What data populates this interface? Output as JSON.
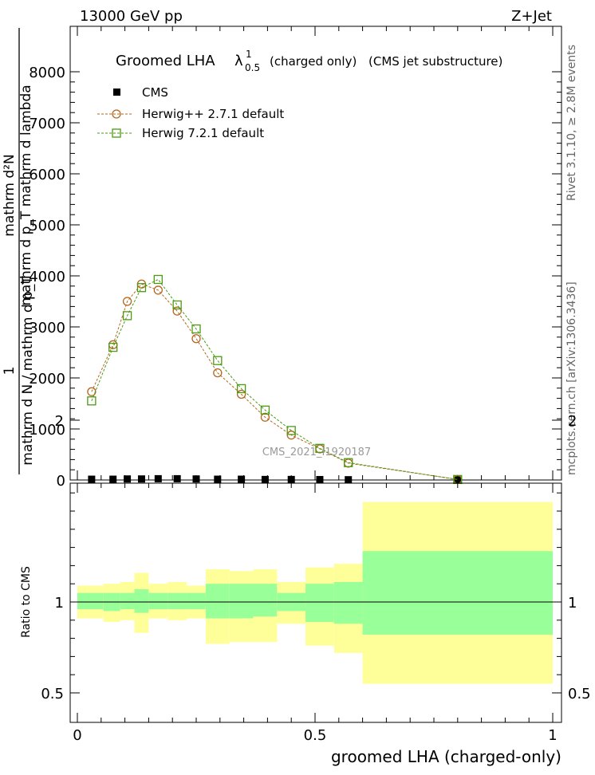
{
  "header": {
    "left": "13000 GeV pp",
    "right": "Z+Jet"
  },
  "side_labels": {
    "rivet": "Rivet 3.1.10, ≥ 2.8M events",
    "mcplots": "mcplots.cern.ch [arXiv:1306.3436]"
  },
  "watermark": "CMS_2021_I1920187",
  "chart_data": [
    {
      "type": "line",
      "title": "Groomed LHA",
      "title_symbol": "λ",
      "title_sup": "1",
      "title_sub": "0.5",
      "title_suffix_small": "(charged only)",
      "title_suffix": "(CMS jet substructure)",
      "ylabel_top": "mathrm d²N",
      "ylabel_top2": "mathrm d p_T mathrm d lambda",
      "ylabel_one": "1",
      "ylabel_bottom": "mathrm d N / mathrm d p_T",
      "xlim": [
        0,
        1
      ],
      "ylim": [
        0,
        8000
      ],
      "yticks": [
        0,
        1000,
        2000,
        3000,
        4000,
        5000,
        6000,
        7000,
        8000
      ],
      "ytick_labels": [
        "0",
        "1000",
        "2000",
        "3000",
        "4000",
        "5000",
        "6000",
        "7000",
        "8000"
      ],
      "legend_placement": "top-left",
      "series": [
        {
          "name": "CMS",
          "marker": "filled-square",
          "color": "#000000",
          "x": [
            0.03,
            0.075,
            0.105,
            0.135,
            0.17,
            0.21,
            0.25,
            0.295,
            0.345,
            0.395,
            0.45,
            0.51,
            0.57,
            0.8
          ],
          "y": [
            15,
            15,
            20,
            20,
            25,
            25,
            20,
            15,
            15,
            10,
            10,
            8,
            5,
            2
          ]
        },
        {
          "name": "Herwig++ 2.7.1 default",
          "marker": "open-circle",
          "color": "#b5651d",
          "x": [
            0.03,
            0.075,
            0.105,
            0.135,
            0.17,
            0.21,
            0.25,
            0.295,
            0.345,
            0.395,
            0.45,
            0.51,
            0.57,
            0.8
          ],
          "y": [
            1730,
            2650,
            3500,
            3840,
            3720,
            3310,
            2770,
            2100,
            1680,
            1230,
            880,
            610,
            330,
            10
          ]
        },
        {
          "name": "Herwig 7.2.1 default",
          "marker": "open-square",
          "color": "#4c9a12",
          "x": [
            0.03,
            0.075,
            0.105,
            0.135,
            0.17,
            0.21,
            0.25,
            0.295,
            0.345,
            0.395,
            0.45,
            0.51,
            0.57,
            0.8
          ],
          "y": [
            1550,
            2600,
            3220,
            3770,
            3930,
            3430,
            2960,
            2340,
            1790,
            1370,
            970,
            620,
            340,
            10
          ]
        }
      ]
    },
    {
      "type": "area",
      "ylabel": "Ratio to CMS",
      "xlabel": "groomed LHA (charged-only)",
      "xlim": [
        0,
        1
      ],
      "ylim": [
        0.34,
        2.3
      ],
      "xticks": [
        0,
        0.5,
        1
      ],
      "xtick_labels": [
        "0",
        "0.5",
        "1"
      ],
      "yticks": [
        0.5,
        1,
        2
      ],
      "ytick_labels": [
        "0.5",
        "1",
        "2"
      ],
      "band_colors": {
        "outer": "#ffff99",
        "inner": "#99ff99"
      },
      "bin_edges": [
        0.0,
        0.055,
        0.09,
        0.12,
        0.15,
        0.19,
        0.23,
        0.27,
        0.32,
        0.37,
        0.42,
        0.48,
        0.54,
        0.6,
        1.0
      ],
      "outer_band": [
        [
          0.91,
          1.09
        ],
        [
          0.89,
          1.1
        ],
        [
          0.9,
          1.11
        ],
        [
          0.83,
          1.16
        ],
        [
          0.91,
          1.1
        ],
        [
          0.9,
          1.11
        ],
        [
          0.91,
          1.09
        ],
        [
          0.77,
          1.18
        ],
        [
          0.78,
          1.17
        ],
        [
          0.78,
          1.18
        ],
        [
          0.88,
          1.11
        ],
        [
          0.76,
          1.19
        ],
        [
          0.72,
          1.21
        ],
        [
          0.55,
          1.55
        ]
      ],
      "inner_band": [
        [
          0.96,
          1.05
        ],
        [
          0.95,
          1.05
        ],
        [
          0.96,
          1.05
        ],
        [
          0.94,
          1.07
        ],
        [
          0.96,
          1.05
        ],
        [
          0.96,
          1.05
        ],
        [
          0.96,
          1.05
        ],
        [
          0.91,
          1.1
        ],
        [
          0.91,
          1.1
        ],
        [
          0.92,
          1.1
        ],
        [
          0.95,
          1.05
        ],
        [
          0.89,
          1.1
        ],
        [
          0.88,
          1.11
        ],
        [
          0.82,
          1.28
        ]
      ]
    }
  ]
}
